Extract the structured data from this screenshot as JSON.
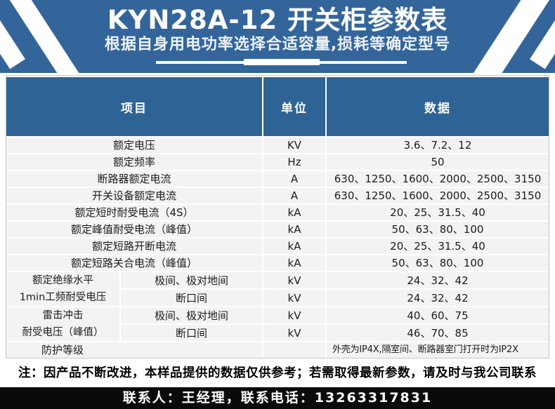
{
  "banner": {
    "title": "KYN28A-12 开关柜参数表",
    "subtitle": "根据自身用电功率选择合适容量,损耗等确定型号",
    "bg_color": "#33659B",
    "stripe_color": "#FFFFFF"
  },
  "table": {
    "header_bg": "#2E6396",
    "row_bg": "#F3F3F3",
    "headers": {
      "item": "项目",
      "unit": "单位",
      "data": "数据"
    },
    "rows": [
      {
        "item": "额定电压",
        "unit": "KV",
        "data": "3.6、7.2、12"
      },
      {
        "item": "额定频率",
        "unit": "Hz",
        "data": "50"
      },
      {
        "item": "断路器额定电流",
        "unit": "A",
        "data": "630、1250、1600、2000、2500、3150"
      },
      {
        "item": "开关设备额定电流",
        "unit": "A",
        "data": "630、1250、1600、2000、2500、3150"
      },
      {
        "item": "额定短时耐受电流（4S）",
        "unit": "kA",
        "data": "20、25、31.5、40"
      },
      {
        "item": "额定峰值耐受电流（峰值）",
        "unit": "kA",
        "data": "50、63、80、100"
      },
      {
        "item": "额定短路开断电流",
        "unit": "kA",
        "data": "20、25、31.5、40"
      },
      {
        "item": "额定短路关合电流（峰值）",
        "unit": "kA",
        "data": "50、63、80、100"
      }
    ],
    "group_rows": [
      {
        "label_line1": "额定绝缘水平",
        "label_line2": "1min工频耐受电压",
        "subrows": [
          {
            "item": "极间、极对地间",
            "unit": "kV",
            "data": "24、32、42"
          },
          {
            "item": "断口间",
            "unit": "kV",
            "data": "24、32、42"
          }
        ]
      },
      {
        "label_line1": "雷击冲击",
        "label_line2": "耐受电压（峰值）",
        "subrows": [
          {
            "item": "极间、极对地间",
            "unit": "kV",
            "data": "40、60、75"
          },
          {
            "item": "断口间",
            "unit": "kV",
            "data": "46、70、85"
          }
        ]
      }
    ],
    "last_row": {
      "item": "防护等级",
      "unit": "",
      "data": "外壳为IP4X,隔室间、断路器室门打开时为IP2X"
    }
  },
  "note": "注：因产品不断改进，本样品提供的数据仅供参考；若需取得最新参数，请及时与我公司联系",
  "footer": {
    "contact": "联系人：王经理，联系电话：13263317831",
    "bg_color": "#0A0A0A"
  }
}
